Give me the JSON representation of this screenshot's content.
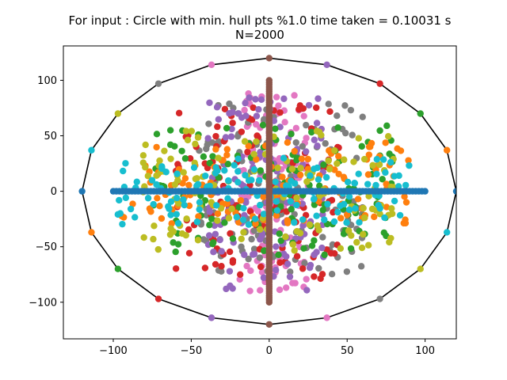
{
  "chart_data": {
    "type": "scatter",
    "title": "For input : Circle with min. hull pts %1.0 time taken = 0.10031 s",
    "subtitle": "N=2000",
    "xlim": [
      -132,
      120
    ],
    "ylim": [
      -133,
      131
    ],
    "x_ticks": [
      -100,
      -50,
      0,
      50,
      100
    ],
    "y_ticks": [
      -100,
      -50,
      0,
      50,
      100
    ],
    "x_tick_labels": [
      "−100",
      "−50",
      "0",
      "50",
      "100"
    ],
    "y_tick_labels": [
      "−100",
      "−50",
      "0",
      "50",
      "100"
    ],
    "grid": false,
    "legend": "none",
    "palette": [
      "#1f77b4",
      "#ff7f0e",
      "#2ca02c",
      "#d62728",
      "#9467bd",
      "#8c564b",
      "#e377c2",
      "#7f7f7f",
      "#bcbd22",
      "#17becf"
    ],
    "hull_color": "#000000",
    "hull": [
      [
        120,
        0
      ],
      [
        114,
        37
      ],
      [
        97,
        70
      ],
      [
        71,
        97
      ],
      [
        37,
        114
      ],
      [
        0,
        120
      ],
      [
        -37,
        114
      ],
      [
        -71,
        97
      ],
      [
        -97,
        70
      ],
      [
        -114,
        37
      ],
      [
        -120,
        0
      ],
      [
        -114,
        -37
      ],
      [
        -97,
        -70
      ],
      [
        -71,
        -97
      ],
      [
        -37,
        -114
      ],
      [
        0,
        -120
      ],
      [
        37,
        -114
      ],
      [
        71,
        -97
      ],
      [
        97,
        -70
      ],
      [
        114,
        -37
      ],
      [
        120,
        0
      ]
    ],
    "hull_points": [
      {
        "x": 120,
        "y": 0,
        "color": "#1f77b4"
      },
      {
        "x": 114,
        "y": 37,
        "color": "#ff7f0e"
      },
      {
        "x": 97,
        "y": 70,
        "color": "#2ca02c"
      },
      {
        "x": 71,
        "y": 97,
        "color": "#d62728"
      },
      {
        "x": 37,
        "y": 114,
        "color": "#9467bd"
      },
      {
        "x": 0,
        "y": 120,
        "color": "#8c564b"
      },
      {
        "x": -37,
        "y": 114,
        "color": "#e377c2"
      },
      {
        "x": -71,
        "y": 97,
        "color": "#7f7f7f"
      },
      {
        "x": -97,
        "y": 70,
        "color": "#bcbd22"
      },
      {
        "x": -114,
        "y": 37,
        "color": "#17becf"
      },
      {
        "x": -120,
        "y": 0,
        "color": "#1f77b4"
      },
      {
        "x": -114,
        "y": -37,
        "color": "#ff7f0e"
      },
      {
        "x": -97,
        "y": -70,
        "color": "#2ca02c"
      },
      {
        "x": -71,
        "y": -97,
        "color": "#d62728"
      },
      {
        "x": -37,
        "y": -114,
        "color": "#9467bd"
      },
      {
        "x": 0,
        "y": -120,
        "color": "#8c564b"
      },
      {
        "x": 37,
        "y": -114,
        "color": "#e377c2"
      },
      {
        "x": 71,
        "y": -97,
        "color": "#7f7f7f"
      },
      {
        "x": 97,
        "y": -70,
        "color": "#bcbd22"
      },
      {
        "x": 114,
        "y": -37,
        "color": "#17becf"
      }
    ],
    "clusters": [
      {
        "color": "#e377c2",
        "x": [
          -20,
          25
        ],
        "y": [
          -90,
          90
        ]
      },
      {
        "color": "#7f7f7f",
        "x": [
          -45,
          60
        ],
        "y": [
          -75,
          80
        ]
      },
      {
        "color": "#d62728",
        "x": [
          -60,
          45
        ],
        "y": [
          -80,
          80
        ]
      },
      {
        "color": "#9467bd",
        "x": [
          -40,
          35
        ],
        "y": [
          -90,
          85
        ]
      },
      {
        "color": "#2ca02c",
        "x": [
          -75,
          80
        ],
        "y": [
          -60,
          60
        ]
      },
      {
        "color": "#ff7f0e",
        "x": [
          -95,
          95
        ],
        "y": [
          -30,
          45
        ]
      },
      {
        "color": "#bcbd22",
        "x": [
          -85,
          80
        ],
        "y": [
          -55,
          55
        ]
      },
      {
        "color": "#17becf",
        "x": [
          -100,
          90
        ],
        "y": [
          -30,
          30
        ]
      }
    ],
    "lines": [
      {
        "color": "#1f77b4",
        "orientation": "horizontal",
        "from": -100,
        "to": 100,
        "at": 0
      },
      {
        "color": "#8c564b",
        "orientation": "vertical",
        "from": -100,
        "to": 100,
        "at": 0
      }
    ]
  }
}
